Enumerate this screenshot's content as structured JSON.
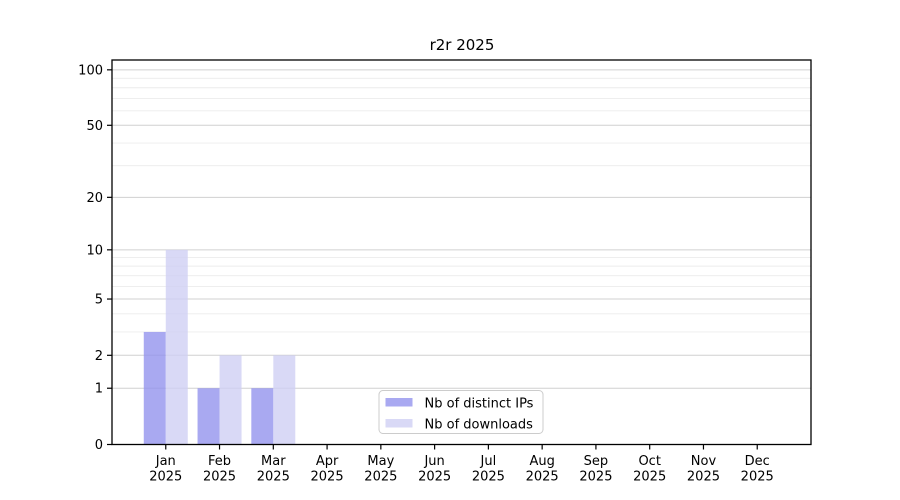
{
  "chart_data": {
    "type": "bar",
    "title": "r2r 2025",
    "categories": [
      "Jan",
      "Feb",
      "Mar",
      "Apr",
      "May",
      "Jun",
      "Jul",
      "Aug",
      "Sep",
      "Oct",
      "Nov",
      "Dec"
    ],
    "year_label": "2025",
    "series": [
      {
        "name": "Nb of distinct IPs",
        "color": "#9494ee",
        "opacity": 0.8,
        "values": [
          3,
          1,
          1,
          0,
          0,
          0,
          0,
          0,
          0,
          0,
          0,
          0
        ]
      },
      {
        "name": "Nb of downloads",
        "color": "#d0d0f4",
        "opacity": 0.8,
        "values": [
          10,
          2,
          2,
          0,
          0,
          0,
          0,
          0,
          0,
          0,
          0,
          0
        ]
      }
    ],
    "yscale": "log10(1+x)",
    "ylim": [
      0,
      113
    ],
    "y_major_ticks": [
      0,
      1,
      2,
      5,
      10,
      20,
      50,
      100
    ],
    "y_minor_gridlines": [
      3,
      4,
      6,
      7,
      8,
      9,
      30,
      40,
      60,
      70,
      80,
      90
    ],
    "grid": "both",
    "legend_position": "lower center inside plot",
    "colors": {
      "major_grid": "#d0d0d0",
      "minor_grid": "#ececec",
      "axis": "#000000",
      "background": "#ffffff",
      "legend_border": "#cccccc"
    }
  }
}
